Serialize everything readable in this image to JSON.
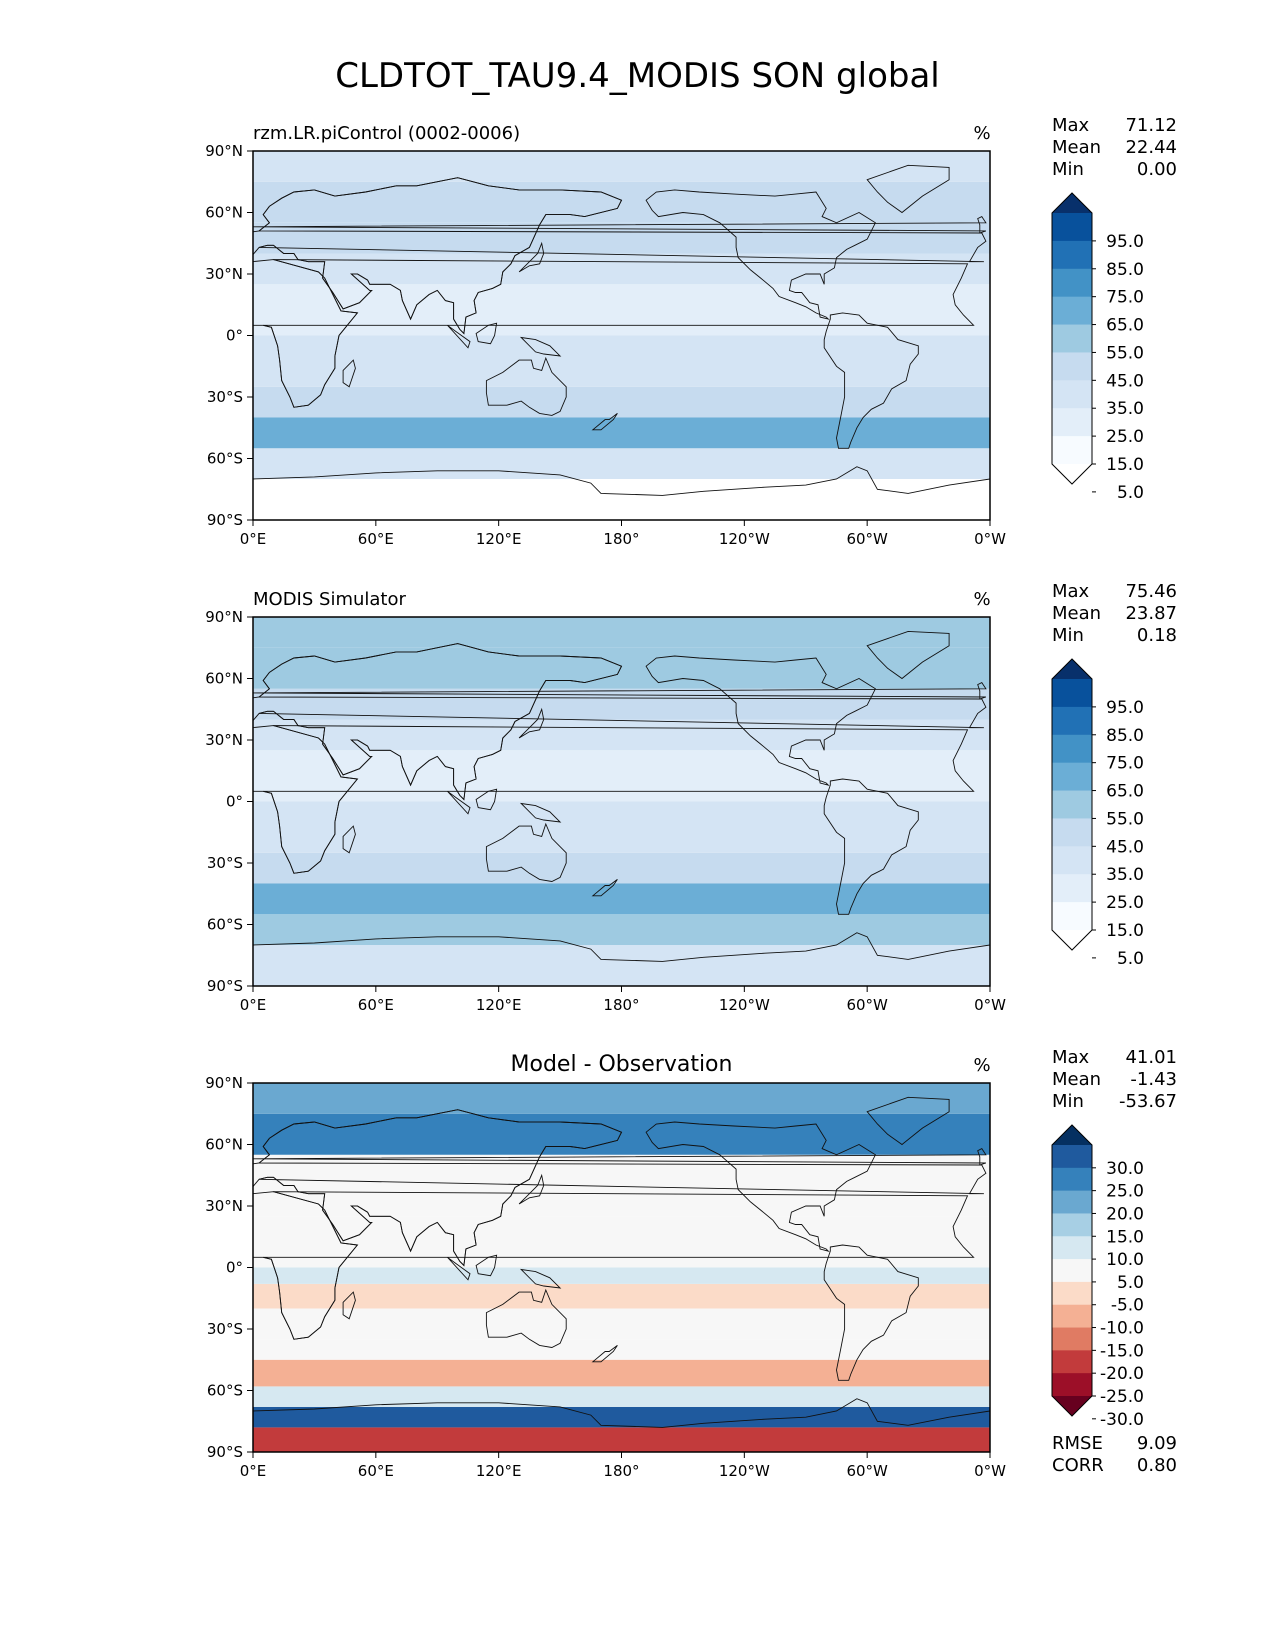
{
  "figure": {
    "title": "CLDTOT_TAU9.4_MODIS SON global"
  },
  "chart_data": [
    {
      "type": "heatmap",
      "panel": "test",
      "title": "rzm.LR.piControl (0002-0006)",
      "title_position": "left",
      "units": "%",
      "xticks": [
        "0°E",
        "60°E",
        "120°E",
        "180°",
        "120°W",
        "60°W",
        "0°W"
      ],
      "yticks": [
        "90°N",
        "60°N",
        "30°N",
        "0°",
        "30°S",
        "60°S",
        "90°S"
      ],
      "xlim": [
        0,
        360
      ],
      "ylim": [
        -90,
        90
      ],
      "stats": {
        "labels": [
          "Max",
          "Mean",
          "Min"
        ],
        "values": [
          "71.12",
          "22.44",
          "0.00"
        ]
      },
      "colorbar": {
        "labels": [
          "95.0",
          "85.0",
          "75.0",
          "65.0",
          "55.0",
          "45.0",
          "35.0",
          "25.0",
          "15.0",
          "5.0"
        ],
        "colors": [
          "#08306b",
          "#08519c",
          "#2171b5",
          "#4292c6",
          "#6baed6",
          "#9ecae1",
          "#c6dbef",
          "#d4e4f4",
          "#e3eef9",
          "#f7fbff",
          "#ffffff"
        ]
      },
      "lat_bands": [
        [
          -90,
          -70,
          0.2
        ],
        [
          -70,
          -55,
          3
        ],
        [
          -55,
          -40,
          5.5
        ],
        [
          -40,
          -25,
          3.5
        ],
        [
          -25,
          -10,
          2.5
        ],
        [
          -10,
          0,
          2.5
        ],
        [
          0,
          10,
          1.5
        ],
        [
          10,
          25,
          1.5
        ],
        [
          25,
          40,
          2.5
        ],
        [
          40,
          55,
          4
        ],
        [
          55,
          75,
          3.5
        ],
        [
          75,
          90,
          3
        ]
      ]
    },
    {
      "type": "heatmap",
      "panel": "reference",
      "title": "MODIS Simulator",
      "title_position": "left",
      "units": "%",
      "xticks": [
        "0°E",
        "60°E",
        "120°E",
        "180°",
        "120°W",
        "60°W",
        "0°W"
      ],
      "yticks": [
        "90°N",
        "60°N",
        "30°N",
        "0°",
        "30°S",
        "60°S",
        "90°S"
      ],
      "xlim": [
        0,
        360
      ],
      "ylim": [
        -90,
        90
      ],
      "stats": {
        "labels": [
          "Max",
          "Mean",
          "Min"
        ],
        "values": [
          "75.46",
          "23.87",
          "0.18"
        ]
      },
      "colorbar": {
        "labels": [
          "95.0",
          "85.0",
          "75.0",
          "65.0",
          "55.0",
          "45.0",
          "35.0",
          "25.0",
          "15.0",
          "5.0"
        ],
        "colors": [
          "#08306b",
          "#08519c",
          "#2171b5",
          "#4292c6",
          "#6baed6",
          "#9ecae1",
          "#c6dbef",
          "#d4e4f4",
          "#e3eef9",
          "#f7fbff",
          "#ffffff"
        ]
      },
      "lat_bands": [
        [
          -90,
          -70,
          3
        ],
        [
          -70,
          -55,
          5
        ],
        [
          -55,
          -40,
          5.5
        ],
        [
          -40,
          -25,
          3.5
        ],
        [
          -25,
          -10,
          2.5
        ],
        [
          -10,
          0,
          2.5
        ],
        [
          0,
          10,
          1.8
        ],
        [
          10,
          25,
          1.8
        ],
        [
          25,
          40,
          2.8
        ],
        [
          40,
          55,
          4
        ],
        [
          55,
          75,
          4.5
        ],
        [
          75,
          90,
          5
        ]
      ]
    },
    {
      "type": "heatmap",
      "panel": "difference",
      "title": "Model - Observation",
      "title_position": "center",
      "units": "%",
      "xticks": [
        "0°E",
        "60°E",
        "120°E",
        "180°",
        "120°W",
        "60°W",
        "0°W"
      ],
      "yticks": [
        "90°N",
        "60°N",
        "30°N",
        "0°",
        "30°S",
        "60°S",
        "90°S"
      ],
      "xlim": [
        0,
        360
      ],
      "ylim": [
        -90,
        90
      ],
      "stats": {
        "labels": [
          "Max",
          "Mean",
          "Min"
        ],
        "values": [
          "41.01",
          "-1.43",
          "-53.67"
        ]
      },
      "metrics": {
        "labels": [
          "RMSE",
          "CORR"
        ],
        "values": [
          "9.09",
          "0.80"
        ]
      },
      "colorbar": {
        "labels": [
          "30.0",
          "25.0",
          "20.0",
          "15.0",
          "10.0",
          "5.0",
          "-5.0",
          "-10.0",
          "-15.0",
          "-20.0",
          "-25.0",
          "-30.0"
        ],
        "colors": [
          "#053061",
          "#1f5a9e",
          "#3581bb",
          "#6aa8d0",
          "#a7cfe4",
          "#d6e8f1",
          "#f7f7f7",
          "#fbdbc8",
          "#f4b094",
          "#e07b63",
          "#c23b3c",
          "#9c0f28",
          "#67001f"
        ]
      },
      "lat_bands": [
        [
          -90,
          -78,
          1.5
        ],
        [
          -78,
          -68,
          11
        ],
        [
          -68,
          -58,
          7
        ],
        [
          -58,
          -45,
          4
        ],
        [
          -45,
          -35,
          5.8
        ],
        [
          -35,
          -20,
          6
        ],
        [
          -20,
          -8,
          5.3
        ],
        [
          -8,
          0,
          6.5
        ],
        [
          0,
          25,
          6
        ],
        [
          25,
          55,
          6.3
        ],
        [
          55,
          75,
          9.5
        ],
        [
          75,
          90,
          8.5
        ]
      ]
    }
  ]
}
